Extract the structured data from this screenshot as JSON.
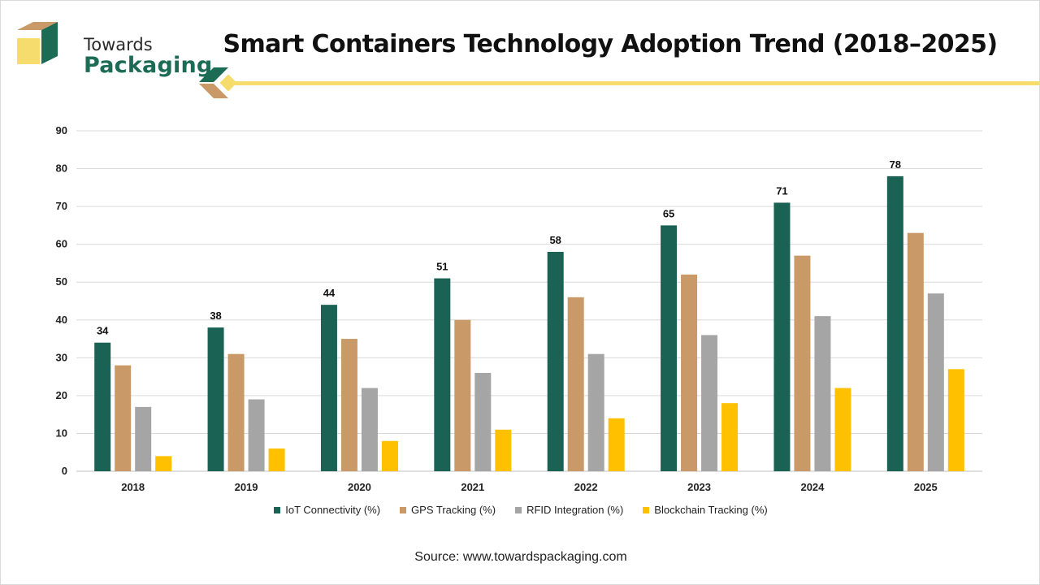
{
  "header": {
    "logo_line1": "Towards",
    "logo_line2": "Packaging",
    "title": "Smart Containers Technology Adoption Trend (2018–2025)"
  },
  "colors": {
    "iot": "#1a6354",
    "gps": "#c99a67",
    "rfid": "#a5a5a5",
    "blockchain": "#ffc000",
    "brand_green": "#1b6b55",
    "brand_gold": "#f5dc6c"
  },
  "chart_data": {
    "type": "bar",
    "title": "Smart Containers Technology Adoption Trend (2018–2025)",
    "xlabel": "",
    "ylabel": "",
    "categories": [
      "2018",
      "2019",
      "2020",
      "2021",
      "2022",
      "2023",
      "2024",
      "2025"
    ],
    "ylim": [
      0,
      90
    ],
    "yticks": [
      0,
      10,
      20,
      30,
      40,
      50,
      60,
      70,
      80,
      90
    ],
    "grid": true,
    "legend_position": "bottom",
    "series": [
      {
        "name": "IoT Connectivity (%)",
        "color": "#1a6354",
        "values": [
          34,
          38,
          44,
          51,
          58,
          65,
          71,
          78
        ],
        "data_labels": true
      },
      {
        "name": "GPS Tracking (%)",
        "color": "#c99a67",
        "values": [
          28,
          31,
          35,
          40,
          46,
          52,
          57,
          63
        ],
        "data_labels": false
      },
      {
        "name": "RFID Integration (%)",
        "color": "#a5a5a5",
        "values": [
          17,
          19,
          22,
          26,
          31,
          36,
          41,
          47
        ],
        "data_labels": false
      },
      {
        "name": "Blockchain Tracking (%)",
        "color": "#ffc000",
        "values": [
          4,
          6,
          8,
          11,
          14,
          18,
          22,
          27
        ],
        "data_labels": false
      }
    ]
  },
  "footer": {
    "source": "Source: www.towardspackaging.com"
  }
}
